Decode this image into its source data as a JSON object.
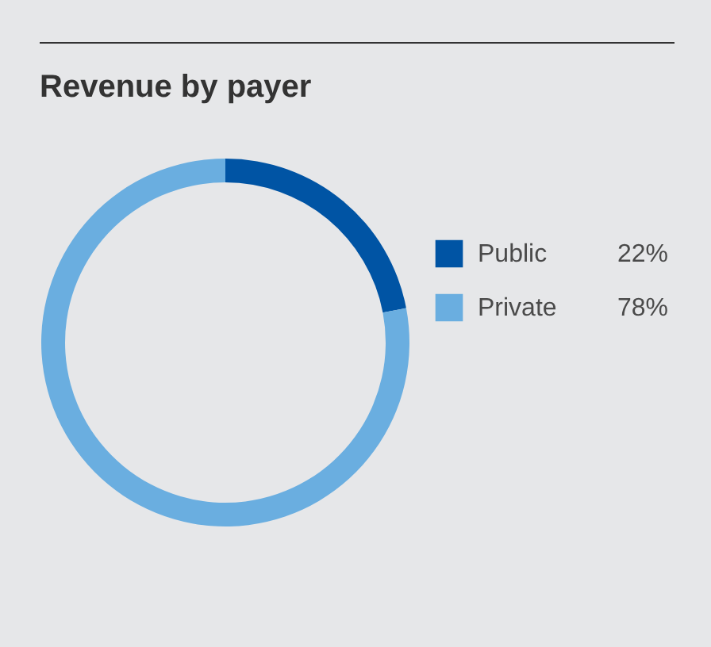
{
  "chart_data": {
    "type": "donut",
    "title": "Revenue by payer",
    "categories": [
      "Public",
      "Private"
    ],
    "values": [
      22,
      78
    ],
    "colors": [
      "#0054a4",
      "#6aaee0"
    ],
    "value_labels": [
      "22%",
      "78%"
    ],
    "legend": "right"
  }
}
